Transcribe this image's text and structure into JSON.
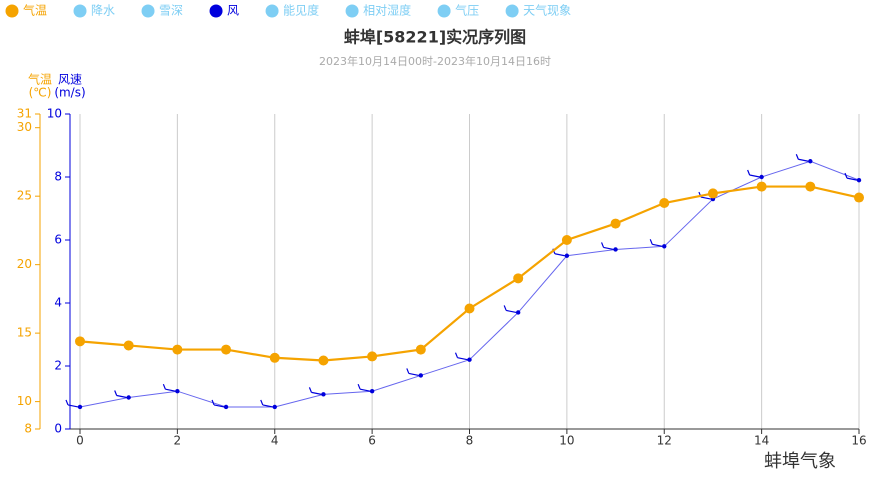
{
  "chart_data": {
    "type": "line",
    "title": "蚌埠[58221]实况序列图",
    "subtitle": "2023年10月14日00时-2023年10月14日16时",
    "legend": [
      {
        "name": "气温",
        "color": "#f5a300"
      },
      {
        "name": "降水",
        "color": "#7ecef4"
      },
      {
        "name": "雪深",
        "color": "#7ecef4"
      },
      {
        "name": "风",
        "color": "#0000dd"
      },
      {
        "name": "能见度",
        "color": "#7ecef4"
      },
      {
        "name": "相对湿度",
        "color": "#7ecef4"
      },
      {
        "name": "气压",
        "color": "#7ecef4"
      },
      {
        "name": "天气现象",
        "color": "#7ecef4"
      }
    ],
    "y_label": "气温",
    "y_unit": "(℃)",
    "y2_label": "风速",
    "y2_unit": "(m/s)",
    "x": [
      0,
      1,
      2,
      3,
      4,
      5,
      6,
      7,
      8,
      9,
      10,
      11,
      12,
      13,
      14,
      15,
      16
    ],
    "xlim": [
      0,
      16
    ],
    "xticks": [
      0,
      2,
      4,
      6,
      8,
      10,
      12,
      14,
      16
    ],
    "ylim": [
      8,
      31
    ],
    "yticks": [
      8,
      10,
      15,
      20,
      25,
      30,
      31
    ],
    "y2lim": [
      0,
      10
    ],
    "y2ticks": [
      0,
      2,
      4,
      6,
      8,
      10
    ],
    "grid": true,
    "series": [
      {
        "name": "气温",
        "color": "#f5a300",
        "values": [
          14.4,
          14.1,
          13.8,
          13.8,
          13.2,
          13.0,
          13.3,
          13.8,
          16.8,
          19.0,
          21.8,
          23.0,
          24.5,
          25.2,
          25.7,
          25.7,
          24.9
        ]
      },
      {
        "name": "风",
        "color": "#0000dd",
        "axis": "y2",
        "values": [
          0.7,
          1.0,
          1.2,
          0.7,
          0.7,
          1.1,
          1.2,
          1.7,
          2.2,
          3.7,
          5.5,
          5.7,
          5.8,
          7.3,
          8.0,
          8.5,
          7.9
        ]
      }
    ],
    "source": "蚌埠气象"
  }
}
